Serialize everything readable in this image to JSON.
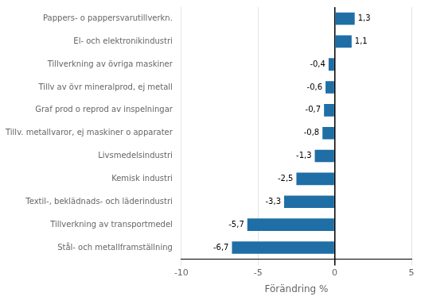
{
  "chart_data": {
    "type": "bar",
    "orientation": "horizontal",
    "categories": [
      "Stål- och metallframställning",
      "Tillverkning av transportmedel",
      "Textil-, beklädnads- och läderindustri",
      "Kemisk industri",
      "Livsmedelsindustri",
      "Tillv. metallvaror, ej maskiner o apparater",
      "Graf prod o reprod av inspelningar",
      "Tillv av övr mineralprod, ej metall",
      "Tillverkning av övriga maskiner",
      "El- och elektronikindustri",
      "Pappers- o pappersvarutillverkn."
    ],
    "values": [
      -6.7,
      -5.7,
      -3.3,
      -2.5,
      -1.3,
      -0.8,
      -0.7,
      -0.6,
      -0.4,
      1.1,
      1.3
    ],
    "value_labels": [
      "-6,7",
      "-5,7",
      "-3,3",
      "-2,5",
      "-1,3",
      "-0,8",
      "-0,7",
      "-0,6",
      "-0,4",
      "1,1",
      "1,3"
    ],
    "color": "#1F6EA6",
    "xlabel": "Förändring %",
    "xlim": [
      -10,
      5
    ],
    "xticks": [
      -10,
      -5,
      0,
      5
    ],
    "grid": true,
    "data_labels": true
  }
}
